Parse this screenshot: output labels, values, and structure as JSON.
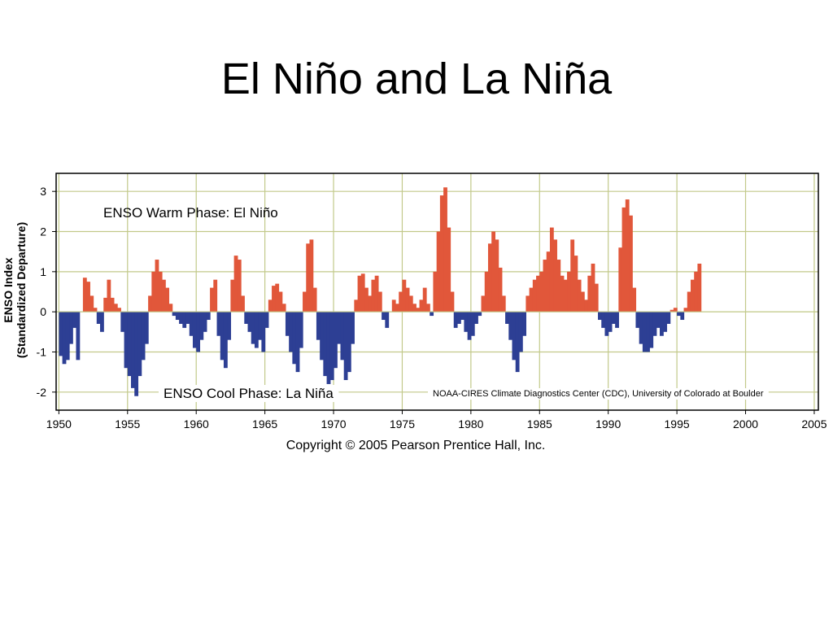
{
  "slide": {
    "title": "El Niño and La Niña"
  },
  "chart_data": {
    "type": "bar",
    "ylabel": "ENSO Index",
    "ylabel_sub": "(Standardized Departure)",
    "ylim": [
      -2.45,
      3.45
    ],
    "xlim": [
      1949.8,
      2005.3
    ],
    "x_ticks": [
      1950,
      1955,
      1960,
      1965,
      1970,
      1975,
      1980,
      1985,
      1990,
      1995,
      2000,
      2005
    ],
    "y_ticks": [
      -2,
      -1,
      0,
      1,
      2,
      3
    ],
    "grid": true,
    "colors": {
      "warm": "#e1573a",
      "cool": "#2d3f94",
      "grid": "#c2c98a"
    },
    "annotations": {
      "warm": "ENSO Warm Phase: El Niño",
      "cool": "ENSO Cool Phase: La Niña",
      "source": "NOAA-CIRES Climate Diagnostics Center (CDC), University of Colorado at Boulder"
    },
    "copyright": "Copyright © 2005 Pearson Prentice Hall, Inc.",
    "series": [
      {
        "x_start": 1950.0,
        "x_step": 0.25,
        "values": [
          -1.1,
          -1.3,
          -1.2,
          -0.8,
          -0.4,
          -1.2,
          0.0,
          0.85,
          0.75,
          0.4,
          0.1,
          -0.3,
          -0.5,
          0.35,
          0.8,
          0.35,
          0.2,
          0.1,
          -0.5,
          -1.4,
          -1.6,
          -1.9,
          -2.1,
          -1.6,
          -1.2,
          -0.8,
          0.4,
          1.0,
          1.3,
          1.0,
          0.8,
          0.6,
          0.2,
          -0.1,
          -0.2,
          -0.3,
          -0.4,
          -0.3,
          -0.6,
          -0.9,
          -1.0,
          -0.7,
          -0.5,
          -0.2,
          0.6,
          0.8,
          -0.6,
          -1.2,
          -1.4,
          -0.7,
          0.8,
          1.4,
          1.3,
          0.4,
          -0.3,
          -0.5,
          -0.8,
          -0.9,
          -0.7,
          -1.0,
          -0.4,
          0.3,
          0.65,
          0.7,
          0.5,
          0.2,
          -0.6,
          -1.0,
          -1.3,
          -1.5,
          -0.9,
          0.5,
          1.7,
          1.8,
          0.6,
          -0.7,
          -1.2,
          -1.6,
          -1.8,
          -1.7,
          -1.4,
          -0.8,
          -1.2,
          -1.7,
          -1.5,
          -0.8,
          0.3,
          0.9,
          0.95,
          0.6,
          0.4,
          0.8,
          0.9,
          0.5,
          -0.2,
          -0.4,
          0.0,
          0.3,
          0.2,
          0.5,
          0.8,
          0.6,
          0.4,
          0.2,
          0.1,
          0.3,
          0.6,
          0.2,
          -0.1,
          1.0,
          2.0,
          2.9,
          3.1,
          2.1,
          0.5,
          -0.4,
          -0.3,
          -0.2,
          -0.5,
          -0.7,
          -0.6,
          -0.3,
          -0.1,
          0.4,
          1.0,
          1.7,
          2.0,
          1.8,
          1.1,
          0.4,
          -0.3,
          -0.7,
          -1.2,
          -1.5,
          -1.0,
          -0.6,
          0.4,
          0.6,
          0.8,
          0.9,
          1.0,
          1.3,
          1.5,
          2.1,
          1.8,
          1.3,
          0.9,
          0.8,
          1.0,
          1.8,
          1.4,
          0.8,
          0.5,
          0.3,
          0.9,
          1.2,
          0.7,
          -0.2,
          -0.4,
          -0.6,
          -0.5,
          -0.3,
          -0.4,
          1.6,
          2.6,
          2.8,
          2.4,
          0.6,
          -0.4,
          -0.8,
          -1.0,
          -1.0,
          -0.9,
          -0.6,
          -0.4,
          -0.6,
          -0.5,
          -0.3,
          0.05,
          0.1,
          -0.1,
          -0.2,
          0.1,
          0.5,
          0.8,
          1.0,
          1.2
        ]
      }
    ]
  }
}
